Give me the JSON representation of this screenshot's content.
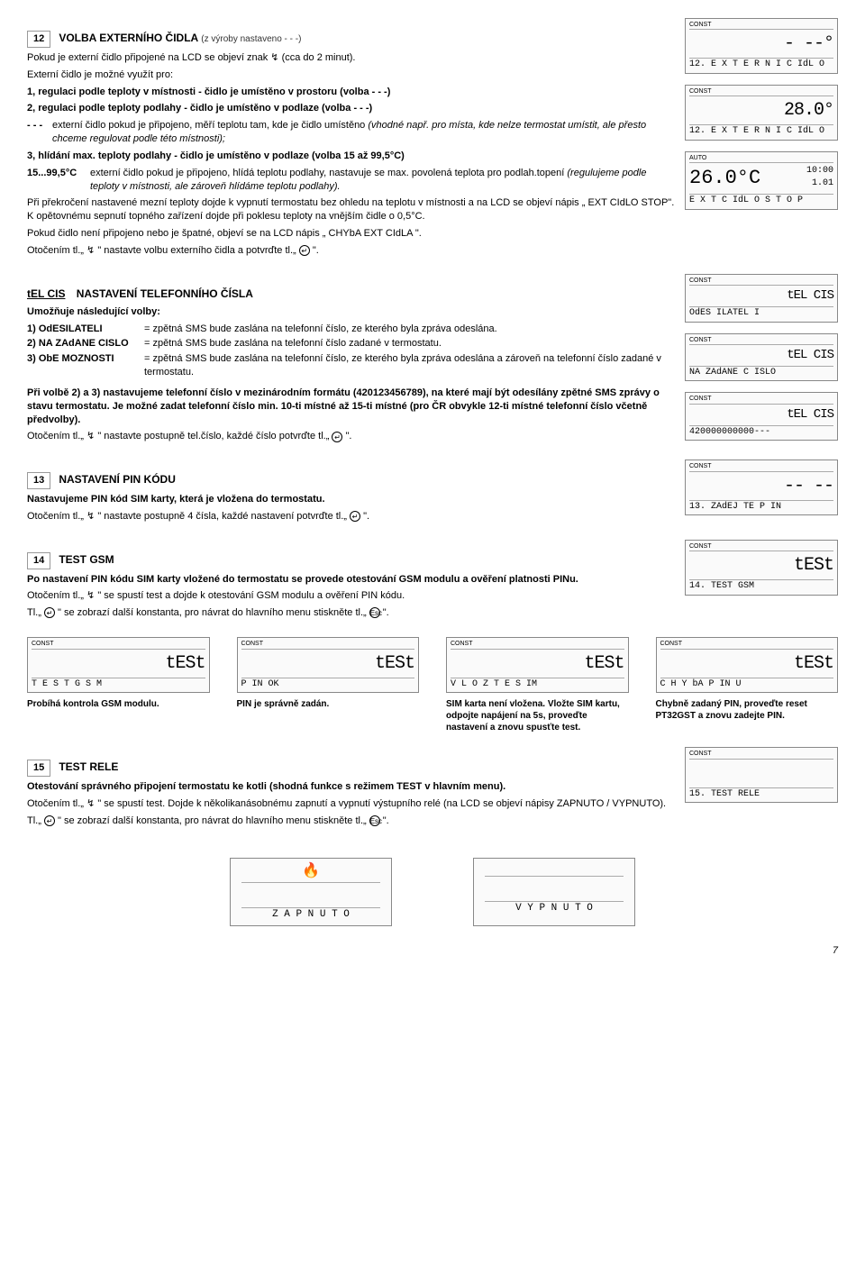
{
  "sec12": {
    "num": "12",
    "title": "VOLBA EXTERNÍHO ČIDLA",
    "factory": "(z výroby nastaveno - - -)",
    "p1a": "Pokud je externí čidlo připojené na LCD se objeví znak ",
    "p1b": " (cca do 2 minut).",
    "p2": "Externí čidlo je možné využít pro:",
    "opt1": "1, regulaci podle teploty v místnosti - čidlo je umístěno v prostoru (volba - - -)",
    "opt2": "2, regulaci podle teploty podlahy - čidlo je umístěno v podlaze (volba - - -)",
    "dash_label": "- - -",
    "dash_text": "externí čidlo pokud je připojeno, měří teplotu tam, kde je čidlo umístěno ",
    "dash_italic": "(vhodné např. pro místa, kde nelze termostat umístit, ale přesto chceme regulovat podle této místnosti);",
    "opt3": "3, hlídání max. teploty podlahy - čidlo je umístěno v podlaze (volba 15 až 99,5°C)",
    "range_label": "15...99,5°C",
    "range_text": "externí čidlo pokud je připojeno, hlídá teplotu podlahy, nastavuje se max. povolená teplota pro podlah.topení ",
    "range_italic": "(regulujeme podle teploty v místnosti, ale zároveň hlídáme teplotu podlahy).",
    "p3": "Při překročení nastavené mezní teploty dojde k vypnutí termostatu bez ohledu na teplotu v místnosti a na LCD se objeví nápis „ EXT CIdLO STOP\". K opětovnému sepnutí topného zařízení dojde při poklesu teploty na vnějším čidle o 0,5°C.",
    "p4": "Pokud čidlo není připojeno nebo je špatné, objeví se na LCD nápis „ CHYbA EXT CIdLA \".",
    "p5a": "Otočením tl.„ ",
    "p5b": " \" nastavte volbu externího čidla a potvrďte tl.„ ",
    "p5c": " \".",
    "lcd1": {
      "const": "CONST",
      "line1": "- --°",
      "line2": "12. E X T E R N I C IdL O"
    },
    "lcd2": {
      "const": "CONST",
      "line1": "28.0°",
      "line2": "12. E X T E R N I C IdL O"
    },
    "lcd3": {
      "const": "AUTO",
      "temp": "26.0°C",
      "time": "10:00",
      "prog": "1.01",
      "line2": "E X T C IdL O S T O P"
    }
  },
  "tel": {
    "label": "tEL CIS",
    "title": "NASTAVENÍ TELEFONNÍHO ČÍSLA",
    "intro": "Umožňuje následující volby:",
    "r1k": "1) OdESILATELI",
    "r1v": "= zpětná SMS bude zaslána na telefonní číslo, ze kterého byla zpráva odeslána.",
    "r2k": "2) NA ZAdANE CISLO",
    "r2v": "= zpětná SMS bude zaslána na telefonní číslo zadané v termostatu.",
    "r3k": "3) ObE MOZNOSTI",
    "r3v": "= zpětná SMS bude zaslána na telefonní číslo, ze kterého byla zpráva odeslána a zároveň na telefonní číslo zadané v termostatu.",
    "p1": "Při volbě 2) a 3) nastavujeme telefonní číslo v mezinárodním formátu (420123456789), na které mají být odesílány zpětné SMS zprávy o stavu termostatu. Je možné zadat telefonní číslo min. 10-ti místné až 15-ti místné (pro ČR obvykle 12-ti místné telefonní číslo včetně předvolby).",
    "p2a": "Otočením tl.„ ",
    "p2b": " \" nastavte postupně tel.číslo, každé číslo potvrďte tl.„ ",
    "p2c": " \".",
    "lcd1": {
      "const": "CONST",
      "line1": "tEL CIS",
      "line2": "OdES ILATEL I"
    },
    "lcd2": {
      "const": "CONST",
      "line1": "tEL CIS",
      "line2": "NA ZAdANE C ISLO"
    },
    "lcd3": {
      "const": "CONST",
      "line1": "tEL CIS",
      "line2": "420000000000---"
    }
  },
  "sec13": {
    "num": "13",
    "title": "NASTAVENÍ PIN KÓDU",
    "p1": "Nastavujeme PIN kód SIM karty, která je vložena do termostatu.",
    "p2a": "Otočením tl.„ ",
    "p2b": " \" nastavte postupně 4 čísla, každé nastavení potvrďte tl.„ ",
    "p2c": " \".",
    "lcd": {
      "const": "CONST",
      "line1": "-- --",
      "line2": "13. ZAdEJ TE P IN"
    }
  },
  "sec14": {
    "num": "14",
    "title": "TEST GSM",
    "p1": "Po nastavení PIN kódu SIM karty vložené do termostatu se provede otestování GSM modulu a ověření platnosti PINu.",
    "p2a": "Otočením tl.„ ",
    "p2b": " \" se spustí test a dojde k otestování GSM modulu a ověření PIN kódu.",
    "p3a": "Tl.„ ",
    "p3b": " \" se zobrazí další konstanta, pro návrat do hlavního menu stiskněte tl.„ ",
    "p3c": " \".",
    "lcd": {
      "const": "CONST",
      "line1": "tESt",
      "line2": "14. TEST GSM"
    },
    "grid": [
      {
        "const": "CONST",
        "line1": "tESt",
        "line2": "T E S T G S M",
        "cap": "Probíhá kontrola GSM modulu."
      },
      {
        "const": "CONST",
        "line1": "tESt",
        "line2": "P IN OK",
        "cap": "PIN je správně zadán."
      },
      {
        "const": "CONST",
        "line1": "tESt",
        "line2": "V L O Z T E S IM",
        "cap": "SIM karta není vložena. Vložte SIM kartu, odpojte napájení na 5s, proveďte nastavení a znovu spusťte test."
      },
      {
        "const": "CONST",
        "line1": "tESt",
        "line2": "C H Y bA P IN U",
        "cap": "Chybně zadaný PIN, proveďte reset PT32GST a znovu zadejte PIN."
      }
    ]
  },
  "sec15": {
    "num": "15",
    "title": "TEST RELE",
    "p1": "Otestování správného připojení termostatu ke kotli (shodná funkce s režimem TEST v hlavním menu).",
    "p2a": "Otočením tl.„ ",
    "p2b": " \" se spustí test. Dojde k několikanásobnému zapnutí a vypnutí výstupního relé (na LCD se objeví nápisy ZAPNUTO / VYPNUTO).",
    "p3a": "Tl.„ ",
    "p3b": " \" se zobrazí další konstanta, pro návrat do hlavního menu stiskněte tl.„ ",
    "p3c": " \".",
    "lcd": {
      "const": "CONST",
      "line2": "15. TEST RELE"
    }
  },
  "bottom": {
    "zap": "Z A P N U T O",
    "vyp": "V Y P N U T O"
  },
  "pagenum": "7"
}
